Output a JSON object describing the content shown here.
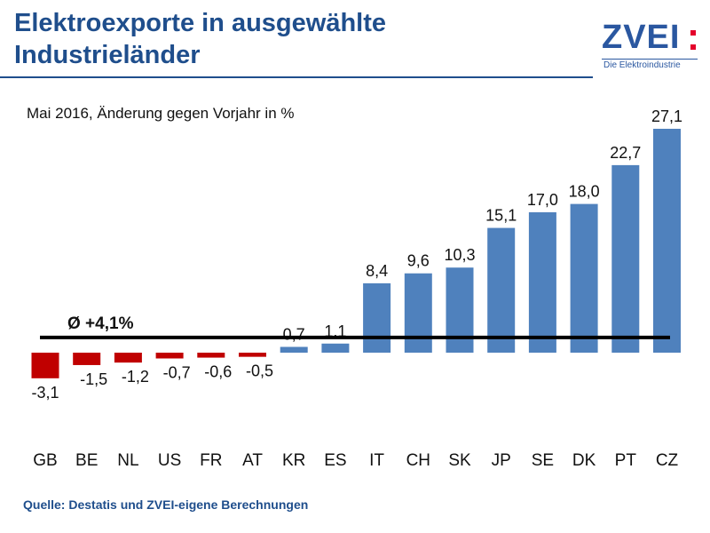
{
  "header": {
    "title_line1": "Elektroexporte in ausgewählte",
    "title_line2": "Industrieländer"
  },
  "logo": {
    "wordmark": "ZVEI",
    "tagline": "Die Elektroindustrie",
    "accent_color": "#e4002b"
  },
  "footer": {
    "source": "Quelle: Destatis und ZVEI-eigene Berechnungen"
  },
  "colors": {
    "positive": "#4f81bd",
    "negative": "#c00000",
    "title": "#1f4e8c"
  },
  "chart_data": {
    "type": "bar",
    "title": "",
    "subtitle": "Mai 2016, Änderung gegen Vorjahr in %",
    "categories": [
      "GB",
      "BE",
      "NL",
      "US",
      "FR",
      "AT",
      "KR",
      "ES",
      "IT",
      "CH",
      "SK",
      "JP",
      "SE",
      "DK",
      "PT",
      "CZ"
    ],
    "values": [
      -3.1,
      -1.5,
      -1.2,
      -0.7,
      -0.6,
      -0.5,
      0.7,
      1.1,
      8.4,
      9.6,
      10.3,
      15.1,
      17.0,
      18.0,
      22.7,
      27.1
    ],
    "value_labels": [
      "-3,1",
      "-1,5",
      "-1,2",
      "-0,7",
      "-0,6",
      "-0,5",
      "0,7",
      "1,1",
      "8,4",
      "9,6",
      "10,3",
      "15,1",
      "17,0",
      "18,0",
      "22,7",
      "27,1"
    ],
    "average": {
      "value": 4.1,
      "label": "Ø +4,1%"
    },
    "xlabel": "",
    "ylabel": "",
    "ylim": [
      -5,
      28
    ],
    "grid": false,
    "legend": "none"
  }
}
